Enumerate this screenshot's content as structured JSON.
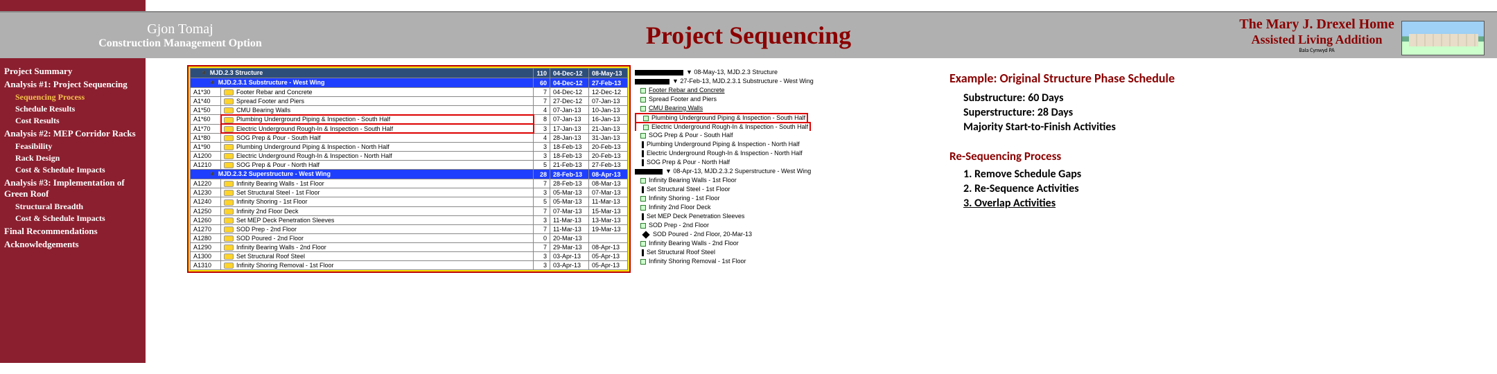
{
  "header": {
    "author": "Gjon Tomaj",
    "option": "Construction  Management Option",
    "title": "Project Sequencing",
    "project_line1": "The Mary J. Drexel Home",
    "project_line2": "Assisted Living Addition",
    "location": "Bala Cynwyd PA"
  },
  "sidebar": [
    {
      "label": "Project Summary",
      "lvl": 1
    },
    {
      "label": "Analysis #1: Project Sequencing",
      "lvl": 1
    },
    {
      "label": "Sequencing Process",
      "lvl": 2,
      "active": true
    },
    {
      "label": "Schedule Results",
      "lvl": 2
    },
    {
      "label": "Cost Results",
      "lvl": 2
    },
    {
      "label": "Analysis #2: MEP Corridor Racks",
      "lvl": 1
    },
    {
      "label": "Feasibility",
      "lvl": 2
    },
    {
      "label": "Rack Design",
      "lvl": 2
    },
    {
      "label": "Cost & Schedule Impacts",
      "lvl": 2
    },
    {
      "label": "Analysis #3: Implementation of Green Roof",
      "lvl": 1
    },
    {
      "label": "Structural Breadth",
      "lvl": 2
    },
    {
      "label": "Cost & Schedule Impacts",
      "lvl": 2
    },
    {
      "label": "Final Recommendations",
      "lvl": 1
    },
    {
      "label": "Acknowledgements",
      "lvl": 1
    }
  ],
  "schedule": {
    "group": {
      "name": "MJD.2.3  Structure",
      "dur": "110",
      "d1": "04-Dec-12",
      "d2": "08-May-13",
      "gantt": "08-May-13, MJD.2.3  Structure"
    },
    "sub1": {
      "name": "MJD.2.3.1  Substructure - West Wing",
      "dur": "60",
      "d1": "04-Dec-12",
      "d2": "27-Feb-13",
      "gantt": "27-Feb-13, MJD.2.3.1  Substructure - West Wing"
    },
    "rows1": [
      {
        "id": "A1*30",
        "name": "Footer Rebar and Concrete",
        "dur": "7",
        "d1": "04-Dec-12",
        "d2": "12-Dec-12",
        "gl": "Footer Rebar and Concrete",
        "u": true
      },
      {
        "id": "A1*40",
        "name": "Spread Footer and Piers",
        "dur": "7",
        "d1": "27-Dec-12",
        "d2": "07-Jan-13",
        "gl": "Spread Footer and Piers"
      },
      {
        "id": "A1*50",
        "name": "CMU Bearing Walls",
        "dur": "4",
        "d1": "07-Jan-13",
        "d2": "10-Jan-13",
        "gl": "CMU Bearing Walls",
        "u": true
      },
      {
        "id": "A1*60",
        "name": "Plumbing Underground Piping & Inspection - South Half",
        "dur": "8",
        "d1": "07-Jan-13",
        "d2": "16-Jan-13",
        "gl": "Plumbing Underground Piping & Inspection - South Half",
        "hl": true,
        "ghl": true
      },
      {
        "id": "A1*70",
        "name": "Electric Underground Rough-In & Inspection - South Half",
        "dur": "3",
        "d1": "17-Jan-13",
        "d2": "21-Jan-13",
        "gl": "Electric Underground Rough-In & Inspection - South Half",
        "hl": true,
        "ghl": true
      },
      {
        "id": "A1*80",
        "name": "SOG Prep & Pour - South Half",
        "dur": "4",
        "d1": "28-Jan-13",
        "d2": "31-Jan-13",
        "gl": "SOG Prep & Pour - South Half"
      },
      {
        "id": "A1*90",
        "name": "Plumbing Underground Piping & Inspection - North Half",
        "dur": "3",
        "d1": "18-Feb-13",
        "d2": "20-Feb-13",
        "gl": "Plumbing Underground Piping & Inspection - North Half",
        "bar": true
      },
      {
        "id": "A1200",
        "name": "Electric Underground Rough-In & Inspection - North Half",
        "dur": "3",
        "d1": "18-Feb-13",
        "d2": "20-Feb-13",
        "gl": "Electric Underground Rough-In & Inspection - North Half",
        "bar": true
      },
      {
        "id": "A1210",
        "name": "SOG Prep & Pour - North Half",
        "dur": "5",
        "d1": "21-Feb-13",
        "d2": "27-Feb-13",
        "gl": "SOG Prep & Pour - North Half",
        "bar": true
      }
    ],
    "sub2": {
      "name": "MJD.2.3.2  Superstructure - West Wing",
      "dur": "28",
      "d1": "28-Feb-13",
      "d2": "08-Apr-13",
      "gantt": "08-Apr-13, MJD.2.3.2  Superstructure - West Wing"
    },
    "rows2": [
      {
        "id": "A1220",
        "name": "Infinity Bearing Walls - 1st Floor",
        "dur": "7",
        "d1": "28-Feb-13",
        "d2": "08-Mar-13",
        "gl": "Infinity Bearing Walls - 1st Floor"
      },
      {
        "id": "A1230",
        "name": "Set Structural Steel - 1st Floor",
        "dur": "3",
        "d1": "05-Mar-13",
        "d2": "07-Mar-13",
        "gl": "Set Structural Steel - 1st Floor",
        "bar": true
      },
      {
        "id": "A1240",
        "name": "Infinity Shoring - 1st Floor",
        "dur": "5",
        "d1": "05-Mar-13",
        "d2": "11-Mar-13",
        "gl": "Infinity Shoring - 1st Floor"
      },
      {
        "id": "A1250",
        "name": "Infinity 2nd Floor Deck",
        "dur": "7",
        "d1": "07-Mar-13",
        "d2": "15-Mar-13",
        "gl": "Infinity 2nd Floor Deck"
      },
      {
        "id": "A1260",
        "name": "Set MEP Deck Penetration Sleeves",
        "dur": "3",
        "d1": "11-Mar-13",
        "d2": "13-Mar-13",
        "gl": "Set MEP Deck Penetration Sleeves",
        "bar": true
      },
      {
        "id": "A1270",
        "name": "SOD Prep - 2nd Floor",
        "dur": "7",
        "d1": "11-Mar-13",
        "d2": "19-Mar-13",
        "gl": "SOD Prep - 2nd Floor"
      },
      {
        "id": "A1280",
        "name": "SOD Poured - 2nd Floor",
        "dur": "0",
        "d1": "20-Mar-13",
        "d2": "",
        "gl": "SOD Poured - 2nd Floor, 20-Mar-13",
        "dia": true
      },
      {
        "id": "A1290",
        "name": "Infinity Bearing Walls - 2nd Floor",
        "dur": "7",
        "d1": "29-Mar-13",
        "d2": "08-Apr-13",
        "gl": "Infinity Bearing Walls - 2nd Floor"
      },
      {
        "id": "A1300",
        "name": "Set Structural Roof Steel",
        "dur": "3",
        "d1": "03-Apr-13",
        "d2": "05-Apr-13",
        "gl": "Set Structural Roof Steel",
        "bar": true
      },
      {
        "id": "A1310",
        "name": "Infinity Shoring Removal - 1st Floor",
        "dur": "3",
        "d1": "03-Apr-13",
        "d2": "05-Apr-13",
        "gl": "Infinity Shoring Removal - 1st Floor"
      }
    ]
  },
  "notes": {
    "h1": "Example: Original Structure Phase Schedule",
    "p1": "Substructure: 60 Days",
    "p2": "Superstructure: 28 Days",
    "p3": "Majority Start-to-Finish Activities",
    "h2": "Re-Sequencing Process",
    "l1": "1. Remove Schedule Gaps",
    "l2": "2. Re-Sequence Activities",
    "l3": "3. Overlap Activities"
  }
}
